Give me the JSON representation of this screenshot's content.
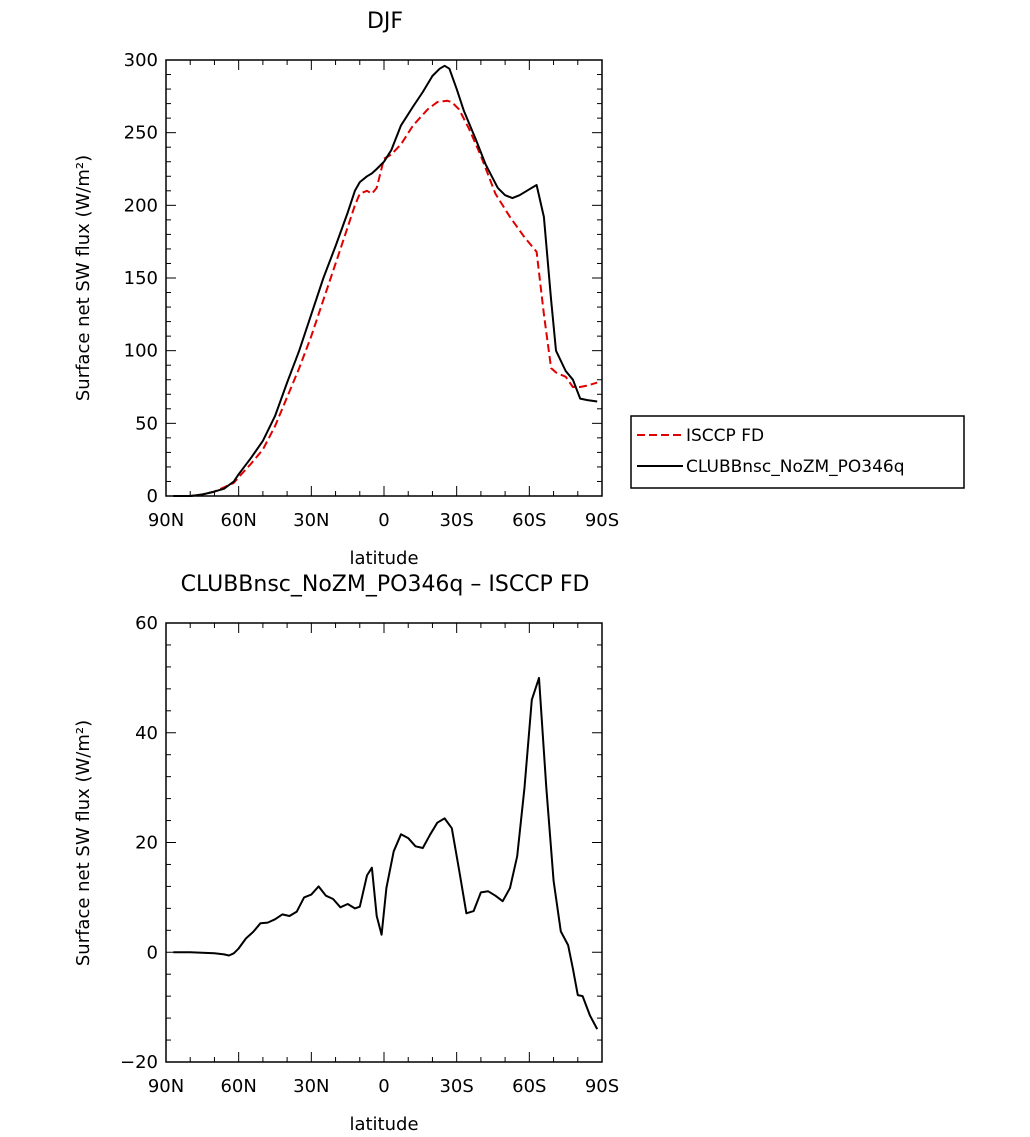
{
  "chart_data": [
    {
      "type": "line",
      "title": "DJF",
      "xlabel": "latitude",
      "ylabel": "Surface net SW flux (W/m²)",
      "x_ticks": [
        "90N",
        "60N",
        "30N",
        "0",
        "30S",
        "60S",
        "90S"
      ],
      "x_tick_values": [
        90,
        60,
        30,
        0,
        -30,
        -60,
        -90
      ],
      "xlim": [
        90,
        -90
      ],
      "ylim": [
        0,
        300
      ],
      "y_ticks": [
        0,
        50,
        100,
        150,
        200,
        250,
        300
      ],
      "grid": false,
      "legend": "outside-right",
      "series": [
        {
          "name": "ISCCP FD",
          "color": "#e00000",
          "style": "dashed",
          "x": [
            87,
            80,
            75,
            70,
            66,
            62,
            60,
            55,
            50,
            45,
            40,
            35,
            30,
            25,
            20,
            15,
            12,
            10,
            7,
            5,
            3,
            0,
            -3,
            -7,
            -12,
            -18,
            -22,
            -26,
            -28,
            -31,
            -35,
            -40,
            -46,
            -52,
            -58,
            -63,
            -66,
            -69,
            -71,
            -75,
            -78,
            -81,
            -84,
            -88
          ],
          "y": [
            0,
            0,
            1,
            3,
            6,
            9,
            13,
            22,
            32,
            48,
            68,
            88,
            110,
            135,
            160,
            185,
            200,
            208,
            210,
            208,
            212,
            232,
            235,
            242,
            255,
            266,
            271,
            272,
            271,
            266,
            253,
            234,
            208,
            192,
            178,
            168,
            125,
            88,
            85,
            82,
            75,
            75,
            76,
            78
          ]
        },
        {
          "name": "CLUBBnsc_NoZM_PO346q",
          "color": "#000000",
          "style": "solid",
          "x": [
            87,
            80,
            75,
            70,
            66,
            62,
            60,
            55,
            50,
            45,
            40,
            35,
            30,
            25,
            20,
            15,
            12,
            10,
            7,
            5,
            3,
            0,
            -3,
            -7,
            -12,
            -16,
            -20,
            -23,
            -25,
            -27,
            -30,
            -33,
            -38,
            -42,
            -47,
            -50,
            -53,
            -56,
            -60,
            -63,
            -66,
            -69,
            -71,
            -75,
            -78,
            -81,
            -84,
            -88
          ],
          "y": [
            0,
            0,
            1,
            3,
            5,
            10,
            15,
            26,
            38,
            55,
            78,
            100,
            125,
            150,
            172,
            195,
            210,
            216,
            220,
            222,
            225,
            230,
            238,
            255,
            268,
            278,
            289,
            294,
            296,
            294,
            280,
            265,
            245,
            228,
            212,
            207,
            205,
            207,
            211,
            214,
            192,
            135,
            100,
            86,
            80,
            67,
            66,
            65
          ]
        }
      ]
    },
    {
      "type": "line",
      "title": "CLUBBnsc_NoZM_PO346q – ISCCP FD",
      "xlabel": "latitude",
      "ylabel": "Surface net SW flux (W/m²)",
      "x_ticks": [
        "90N",
        "60N",
        "30N",
        "0",
        "30S",
        "60S",
        "90S"
      ],
      "x_tick_values": [
        90,
        60,
        30,
        0,
        -30,
        -60,
        -90
      ],
      "xlim": [
        90,
        -90
      ],
      "ylim": [
        -20,
        60
      ],
      "y_ticks": [
        -20,
        0,
        20,
        40,
        60
      ],
      "grid": false,
      "series": [
        {
          "color": "#000000",
          "style": "solid",
          "x": [
            87,
            80,
            75,
            70,
            66,
            64,
            62,
            60,
            57,
            54,
            51,
            48,
            45,
            42,
            39,
            36,
            33,
            30,
            27,
            24,
            21,
            18,
            15,
            12,
            10,
            7,
            5,
            3,
            1,
            -1,
            -4,
            -7,
            -10,
            -13,
            -16,
            -19,
            -22,
            -25,
            -28,
            -31,
            -34,
            -37,
            -40,
            -43,
            -46,
            -49,
            -52,
            -55,
            -58,
            -61,
            -64,
            -67,
            -70,
            -73,
            -76,
            -78,
            -80,
            -82,
            -85,
            -88
          ],
          "y": [
            0,
            0,
            -0.1,
            -0.2,
            -0.4,
            -0.6,
            -0.2,
            0.7,
            2.5,
            3.7,
            5.3,
            5.4,
            6,
            6.9,
            6.6,
            7.4,
            10,
            10.5,
            12,
            10.3,
            9.7,
            8.2,
            8.8,
            8,
            8.3,
            14,
            15.4,
            6.6,
            3.2,
            11.7,
            18.4,
            21.5,
            20.8,
            19.3,
            19,
            21.4,
            23.6,
            24.4,
            22.6,
            15,
            7.1,
            7.5,
            10.9,
            11.1,
            10.3,
            9.3,
            11.7,
            17.5,
            30,
            46,
            50,
            30,
            13,
            3.8,
            1.3,
            -3,
            -7.8,
            -8,
            -11.5,
            -14
          ]
        }
      ]
    }
  ]
}
